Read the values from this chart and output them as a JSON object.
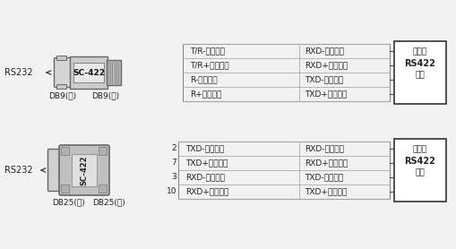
{
  "bg_color": "#f2f2f2",
  "font_path": null,
  "top_section": {
    "rs232_label": "RS232",
    "db9_hole": "DB9(孔)",
    "db9_pin": "DB9(针)",
    "rows": [
      {
        "left": "T/R-［发送］",
        "right": "RXD-［接收］"
      },
      {
        "left": "T/R+［发送］",
        "right": "RXD+［接收］"
      },
      {
        "left": "R-［接收］",
        "right": "TXD-［发送］"
      },
      {
        "left": "R+［接收］",
        "right": "TXD+［发送］"
      }
    ],
    "device_label_line1": "设备的",
    "device_label_line2": "RS422",
    "device_label_line3": "接口"
  },
  "bottom_section": {
    "rs232_label": "RS232",
    "db25_hole": "DB25(孔)",
    "db25_pin": "DB25(针)",
    "rows": [
      {
        "pin": "2",
        "left": "TXD-［发送］",
        "right": "RXD-［接收］"
      },
      {
        "pin": "7",
        "left": "TXD+［发送］",
        "right": "RXD+［接收］"
      },
      {
        "pin": "3",
        "left": "RXD-［接收］",
        "right": "TXD-［发送］"
      },
      {
        "pin": "10",
        "left": "RXD+［接收］",
        "right": "TXD+［发送］"
      }
    ],
    "device_label_line1": "设备的",
    "device_label_line2": "RS422",
    "device_label_line3": "接口"
  }
}
